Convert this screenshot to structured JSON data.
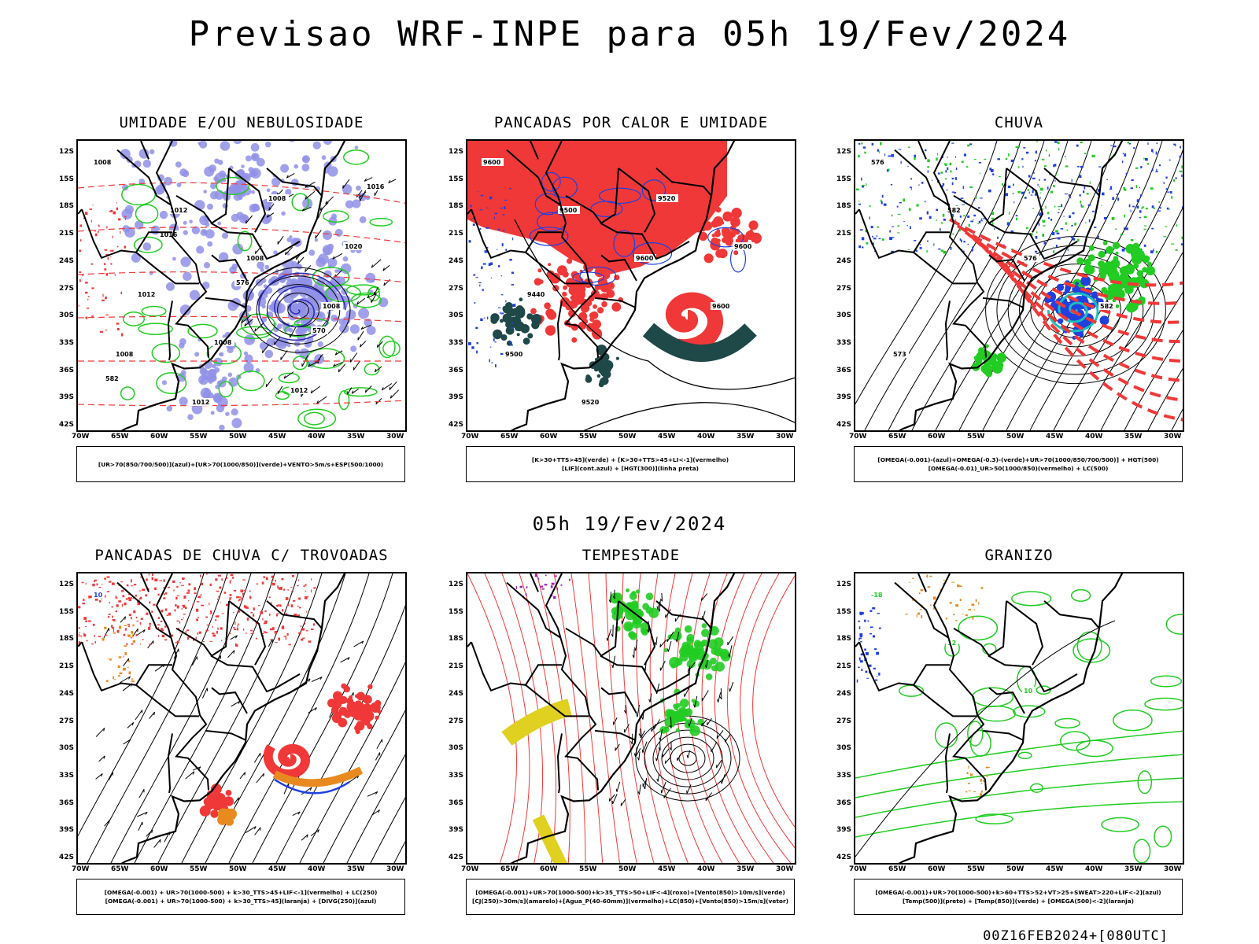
{
  "title": "Previsao WRF-INPE  para 05h 19/Fev/2024",
  "mid_title": "05h 19/Fev/2024",
  "footer": "00Z16FEB2024+[080UTC]",
  "lat_labels": [
    "12S",
    "15S",
    "18S",
    "21S",
    "24S",
    "27S",
    "30S",
    "33S",
    "36S",
    "39S",
    "42S"
  ],
  "lon_labels": [
    "70W",
    "65W",
    "60W",
    "55W",
    "50W",
    "45W",
    "40W",
    "35W",
    "30W"
  ],
  "panels": [
    {
      "title": "UMIDADE E/OU NEBULOSIDADE",
      "legend": [
        "[UR>70(850/700/500)](azul)+[UR>70(1000/850)](verde)+VENTO>5m/s+ESP(500/1000)"
      ],
      "contour_labels": [
        "1008",
        "1012",
        "1008",
        "1008",
        "1008",
        "1012",
        "1008",
        "1020",
        "1012",
        "1008",
        "1012",
        "1016",
        "1016",
        "576",
        "570",
        "582"
      ]
    },
    {
      "title": "PANCADAS POR CALOR E UMIDADE",
      "legend": [
        "[K>30+TTS>45](verde) + [K>30+TTS>45+LI<-1](vermelho)",
        "[LIF](cont.azul) + [HGT(300)](linha preta)"
      ],
      "contour_labels": [
        "9600",
        "9500",
        "9600",
        "9600",
        "9500",
        "9520",
        "9520",
        "9600",
        "9440"
      ]
    },
    {
      "title": "CHUVA",
      "legend": [
        "[OMEGA(-0.001)-(azul)+OMEGA(-0.3)-(verde)+UR>70(1000/850/700/500)] + HGT(500)",
        "[OMEGA(-0.01)_UR>50(1000/850)(vermelho) + LC(500)"
      ],
      "contour_labels": [
        "576",
        "582",
        "576",
        "582",
        "573"
      ]
    },
    {
      "title": "PANCADAS DE CHUVA C/ TROVOADAS",
      "legend": [
        "[OMEGA(-0.001) + UR>70(1000-500) + k>30_TTS>45+LIF<-1](vermelho) + LC(250)",
        "[OMEGA(-0.001) + UR>70(1000-500) + k>30_TTS>45](laranja) + [DIVG(250)](azul)"
      ],
      "contour_labels": [
        "10"
      ]
    },
    {
      "title": "TEMPESTADE",
      "legend": [
        "[OMEGA(-0.001)+UR>70(1000-500)+k>35_TTS>50+LIF<-4](roxo)+[Vento(850)>10m/s](verde)",
        "[CJ(250)>30m/s](amarelo)+[Agua_P(40-60mm)](vermelho)+LC(850)+[Vento(850)>15m/s](vetor)"
      ],
      "contour_labels": []
    },
    {
      "title": "GRANIZO",
      "legend": [
        "[OMEGA(-0.001)+UR>70(1000-500)+k>60+TTS>52+VT>25+SWEAT>220+LIF<-2](azul)",
        "[Temp(500)](preto) + [Temp(850)](verde) + [OMEGA(500)<-2](laranja)"
      ],
      "contour_labels": [
        "-18",
        "12",
        "10"
      ]
    }
  ],
  "colors": {
    "blue_fill": "#9090e8",
    "green_line": "#22cc22",
    "red": "#f03838",
    "dark_teal": "#1f4848",
    "orange": "#e88a20",
    "yellow": "#e0d020",
    "blue": "#2040e0"
  }
}
